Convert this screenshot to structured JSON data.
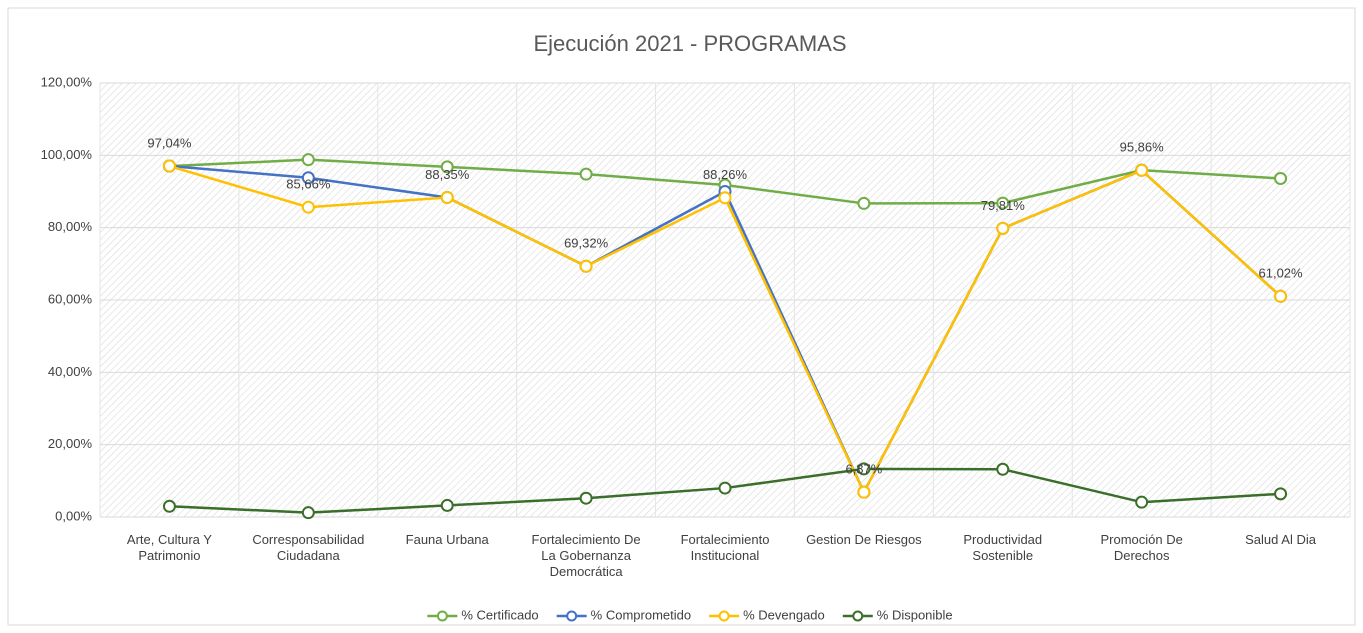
{
  "chart_data": {
    "type": "line",
    "title": "Ejecución 2021 - PROGRAMAS",
    "categories": [
      "Arte, Cultura Y Patrimonio",
      "Corresponsabilidad Ciudadana",
      "Fauna Urbana",
      "Fortalecimiento De La Gobernanza Democrática",
      "Fortalecimiento Institucional",
      "Gestion De Riesgos",
      "Productividad Sostenible",
      "Promoción De Derechos",
      "Salud Al Dia"
    ],
    "series": [
      {
        "name": "% Certificado",
        "color": "#70ad47",
        "values": [
          97.0,
          98.8,
          96.8,
          94.8,
          91.8,
          86.7,
          86.8,
          95.9,
          93.6
        ]
      },
      {
        "name": "% Comprometido",
        "color": "#4472c4",
        "values": [
          97.04,
          93.8,
          88.35,
          69.32,
          90.0,
          6.87,
          79.81,
          95.86,
          61.02
        ]
      },
      {
        "name": "% Devengado",
        "color": "#ffc000",
        "values": [
          97.04,
          85.66,
          88.35,
          69.32,
          88.26,
          6.87,
          79.81,
          95.86,
          61.02
        ],
        "value_labels": [
          "97,04%",
          "85,66%",
          "88,35%",
          "69,32%",
          "88,26%",
          "6,87%",
          "79,81%",
          "95,86%",
          "61,02%"
        ]
      },
      {
        "name": "% Disponible",
        "color": "#3b6e2a",
        "values": [
          2.96,
          1.2,
          3.2,
          5.2,
          8.0,
          13.3,
          13.2,
          4.1,
          6.4
        ]
      }
    ],
    "ylim": [
      0,
      120
    ],
    "yticks": [
      {
        "value": 0,
        "label": "0,00%"
      },
      {
        "value": 20,
        "label": "20,00%"
      },
      {
        "value": 40,
        "label": "40,00%"
      },
      {
        "value": 60,
        "label": "60,00%"
      },
      {
        "value": 80,
        "label": "80,00%"
      },
      {
        "value": 100,
        "label": "100,00%"
      },
      {
        "value": 120,
        "label": "120,00%"
      }
    ],
    "grid": true,
    "legend": "bottom"
  }
}
